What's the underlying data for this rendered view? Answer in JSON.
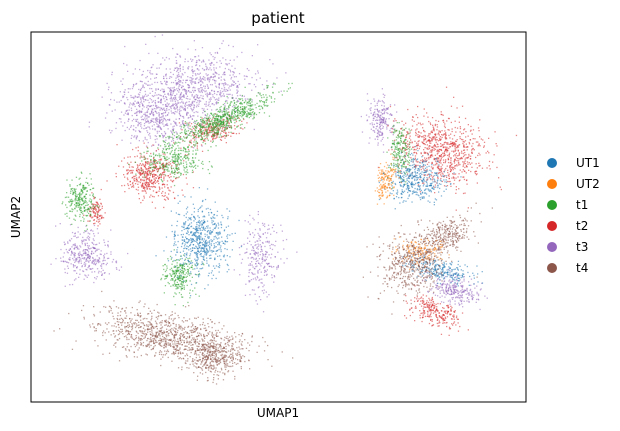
{
  "chart_data": {
    "type": "scatter",
    "title": "patient",
    "xlabel": "UMAP1",
    "ylabel": "UMAP2",
    "ticks": false,
    "grid": false,
    "legend": "right",
    "series": [
      {
        "name": "UT1",
        "color": "#1f77b4"
      },
      {
        "name": "UT2",
        "color": "#ff7f0e"
      },
      {
        "name": "t1",
        "color": "#2ca02c"
      },
      {
        "name": "t2",
        "color": "#d62728"
      },
      {
        "name": "t3",
        "color": "#9467bd"
      },
      {
        "name": "t4",
        "color": "#8c564b"
      }
    ]
  }
}
